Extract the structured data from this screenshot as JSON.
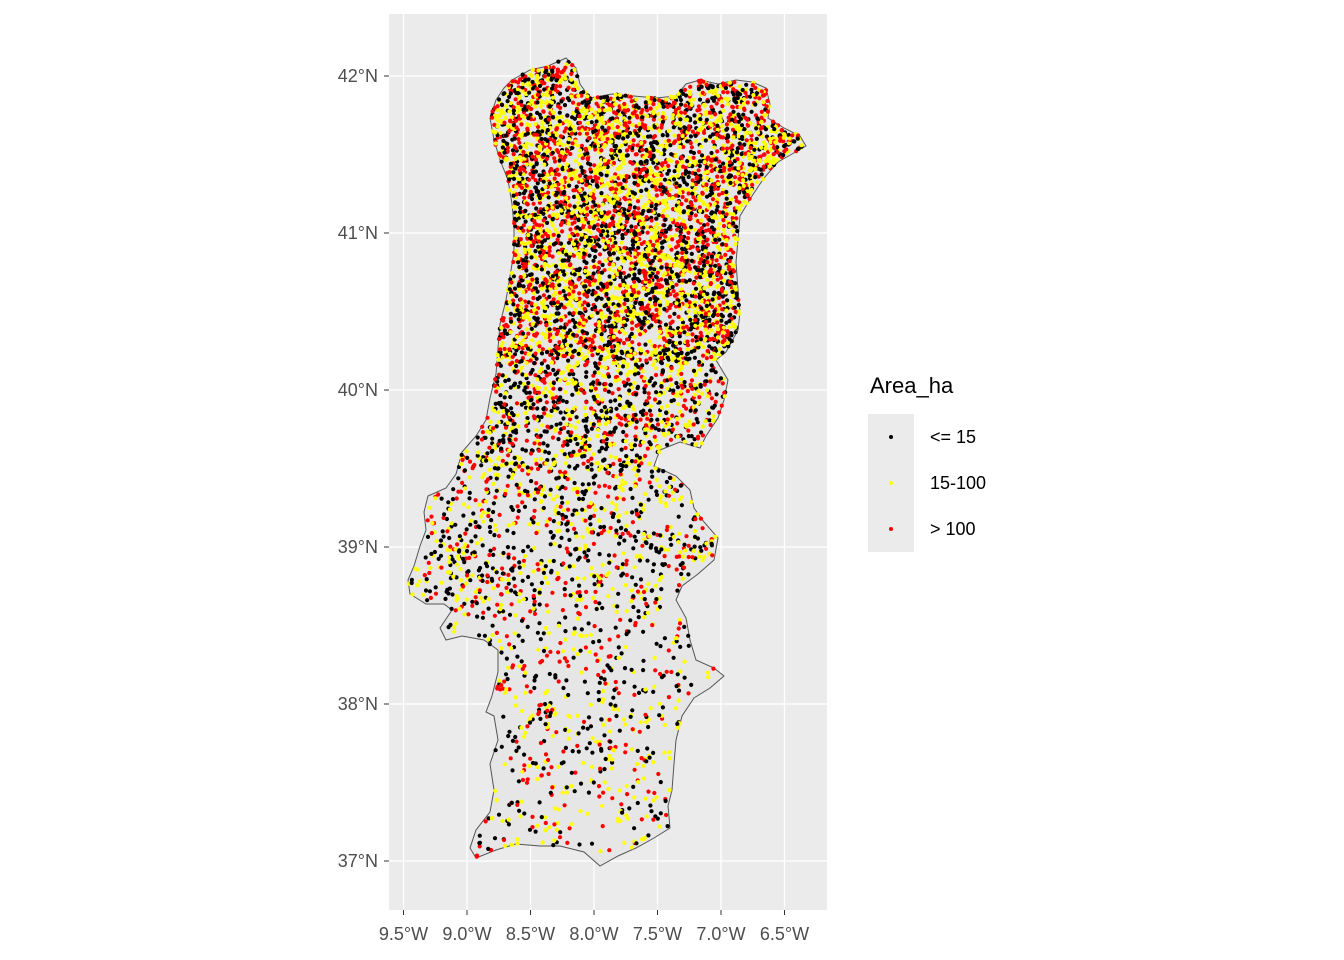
{
  "map": {
    "region": "Portugal (mainland)",
    "projection": "geographic graticule",
    "background_color": "#ebebeb",
    "grid_color": "#ffffff",
    "land_fill": "#e5e5e5",
    "border_color": "#555555",
    "lat_ticks": [
      {
        "value": 42,
        "label": "42°N"
      },
      {
        "value": 41,
        "label": "41°N"
      },
      {
        "value": 40,
        "label": "40°N"
      },
      {
        "value": 39,
        "label": "39°N"
      },
      {
        "value": 38,
        "label": "38°N"
      },
      {
        "value": 37,
        "label": "37°N"
      }
    ],
    "lon_ticks": [
      {
        "value": -9.5,
        "label": "9.5°W"
      },
      {
        "value": -9.0,
        "label": "9.0°W"
      },
      {
        "value": -8.5,
        "label": "8.5°W"
      },
      {
        "value": -8.0,
        "label": "8.0°W"
      },
      {
        "value": -7.5,
        "label": "7.5°W"
      },
      {
        "value": -7.0,
        "label": "7.0°W"
      },
      {
        "value": -6.5,
        "label": "6.5°W"
      }
    ],
    "lon_range": [
      -9.5,
      -6.2
    ],
    "lat_range": [
      36.9,
      42.15
    ]
  },
  "legend": {
    "title": "Area_ha",
    "position": "right",
    "items": [
      {
        "label": "<= 15",
        "color": "#000000"
      },
      {
        "label": "15-100",
        "color": "#ffff00"
      },
      {
        "label": "> 100",
        "color": "#ff0000"
      }
    ]
  }
}
